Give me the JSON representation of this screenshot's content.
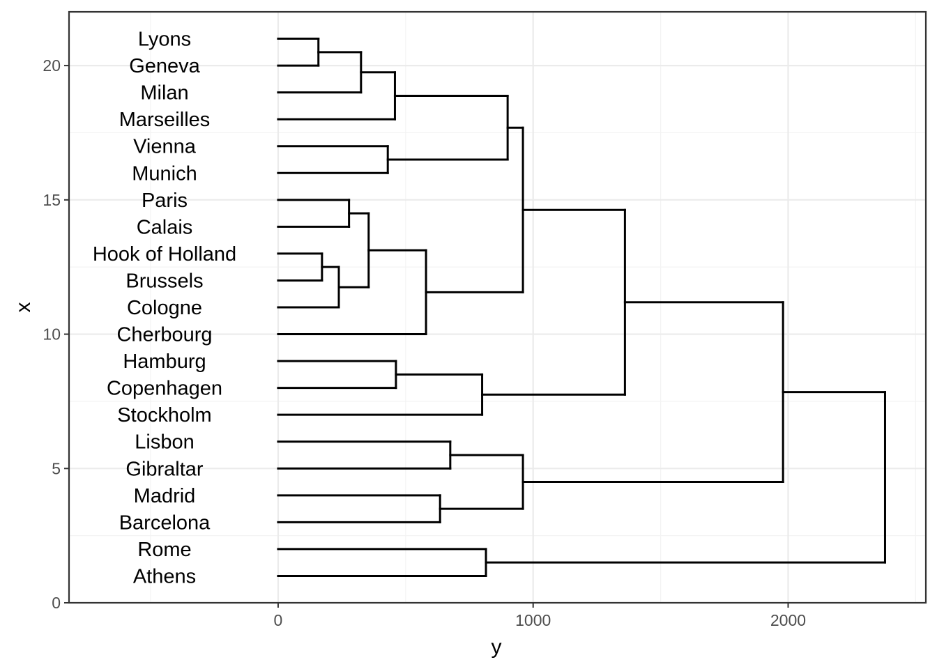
{
  "chart_data": {
    "type": "dendrogram",
    "xlabel": "y",
    "ylabel": "x",
    "x_ticks": [
      0,
      1000,
      2000
    ],
    "y_ticks": [
      0,
      5,
      10,
      15,
      20
    ],
    "xlim": [
      -820,
      2540
    ],
    "ylim": [
      0,
      22
    ],
    "grid": true,
    "leaves": [
      {
        "label": "Athens",
        "x": 1
      },
      {
        "label": "Rome",
        "x": 2
      },
      {
        "label": "Barcelona",
        "x": 3
      },
      {
        "label": "Madrid",
        "x": 4
      },
      {
        "label": "Gibraltar",
        "x": 5
      },
      {
        "label": "Lisbon",
        "x": 6
      },
      {
        "label": "Stockholm",
        "x": 7
      },
      {
        "label": "Copenhagen",
        "x": 8
      },
      {
        "label": "Hamburg",
        "x": 9
      },
      {
        "label": "Cherbourg",
        "x": 10
      },
      {
        "label": "Cologne",
        "x": 11
      },
      {
        "label": "Brussels",
        "x": 12
      },
      {
        "label": "Hook of Holland",
        "x": 13
      },
      {
        "label": "Calais",
        "x": 14
      },
      {
        "label": "Paris",
        "x": 15
      },
      {
        "label": "Munich",
        "x": 16
      },
      {
        "label": "Vienna",
        "x": 17
      },
      {
        "label": "Marseilles",
        "x": 18
      },
      {
        "label": "Milan",
        "x": 19
      },
      {
        "label": "Geneva",
        "x": 20
      },
      {
        "label": "Lyons",
        "x": 21
      }
    ],
    "merges": [
      {
        "x1": 20,
        "x2": 21,
        "height": 158
      },
      {
        "x1": 19,
        "x2": 20.5,
        "height": 325
      },
      {
        "x1": 18,
        "x2": 19.75,
        "height": 458
      },
      {
        "x1": 16,
        "x2": 17,
        "height": 430
      },
      {
        "x1": 16.5,
        "x2": 18.875,
        "height": 900
      },
      {
        "x1": 14,
        "x2": 15,
        "height": 278
      },
      {
        "x1": 12,
        "x2": 13,
        "height": 172
      },
      {
        "x1": 11,
        "x2": 12.5,
        "height": 238
      },
      {
        "x1": 11.75,
        "x2": 14.5,
        "height": 355
      },
      {
        "x1": 10,
        "x2": 13.125,
        "height": 580
      },
      {
        "x1": 11.5625,
        "x2": 17.6875,
        "height": 960
      },
      {
        "x1": 8,
        "x2": 9,
        "height": 462
      },
      {
        "x1": 7,
        "x2": 8.5,
        "height": 800
      },
      {
        "x1": 7.75,
        "x2": 14.625,
        "height": 1360
      },
      {
        "x1": 5,
        "x2": 6,
        "height": 675
      },
      {
        "x1": 3,
        "x2": 4,
        "height": 635
      },
      {
        "x1": 3.5,
        "x2": 5.5,
        "height": 960
      },
      {
        "x1": 1,
        "x2": 2,
        "height": 815
      },
      {
        "x1": 4.5,
        "x2": 11.1875,
        "height": 1980
      },
      {
        "x1": 1.5,
        "x2": 7.84375,
        "height": 2380
      }
    ]
  }
}
